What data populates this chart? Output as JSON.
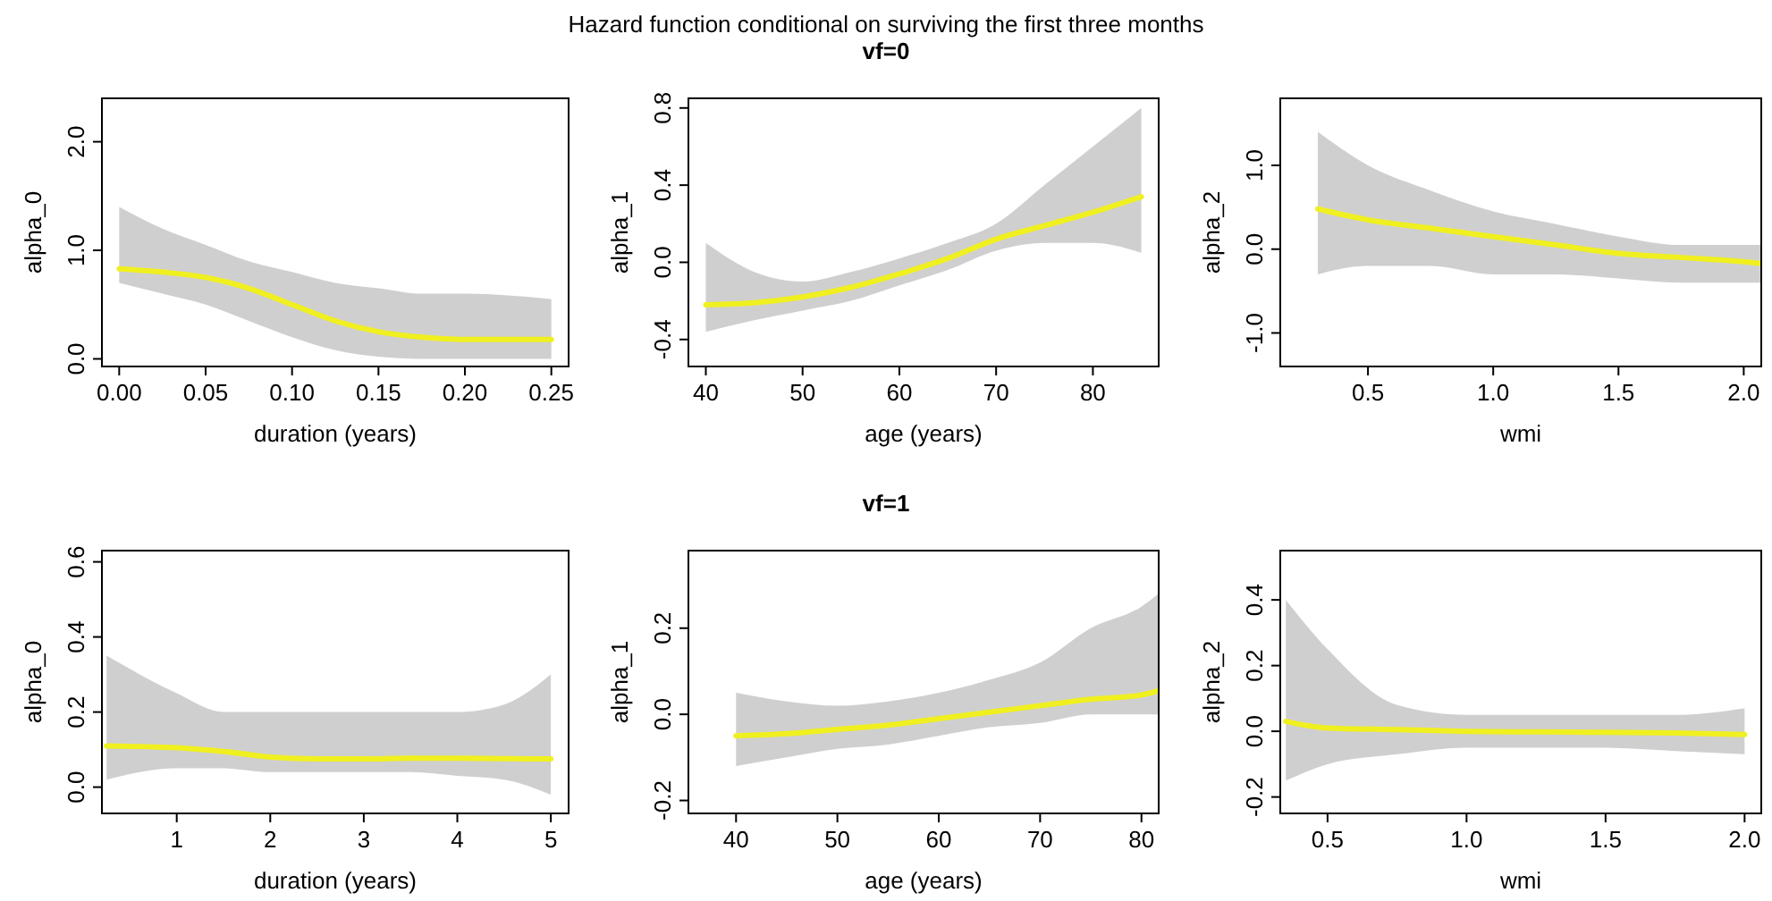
{
  "chart_data": [
    {
      "type": "line",
      "xlabel": "duration (years)",
      "ylabel": "alpha_0",
      "xlim": [
        -0.01,
        0.26
      ],
      "ylim": [
        -0.07,
        2.4
      ],
      "xticks": [
        {
          "value": 0,
          "label": "0.00"
        },
        {
          "value": 0.05,
          "label": "0.05"
        },
        {
          "value": 0.1,
          "label": "0.10"
        },
        {
          "value": 0.15,
          "label": "0.15"
        },
        {
          "value": 0.2,
          "label": "0.20"
        },
        {
          "value": 0.25,
          "label": "0.25"
        }
      ],
      "yticks": [
        {
          "value": 0,
          "label": "0.0"
        },
        {
          "value": 1,
          "label": "1.0"
        },
        {
          "value": 2,
          "label": "2.0"
        }
      ],
      "series": [
        {
          "color": "#f0f020",
          "x": [
            0,
            0.025,
            0.05,
            0.075,
            0.1,
            0.125,
            0.15,
            0.175,
            0.2,
            0.25
          ],
          "values": [
            0.83,
            0.8,
            0.75,
            0.65,
            0.5,
            0.35,
            0.25,
            0.2,
            0.18,
            0.18
          ],
          "lower": [
            0.7,
            0.6,
            0.5,
            0.35,
            0.2,
            0.08,
            0.02,
            0,
            0,
            0
          ],
          "upper": [
            1.4,
            1.2,
            1.05,
            0.9,
            0.8,
            0.7,
            0.65,
            0.6,
            0.6,
            0.55
          ]
        }
      ]
    },
    {
      "type": "line",
      "title": "Hazard function conditional on surviving the first three months",
      "subtitle": "vf=0",
      "xlabel": "age (years)",
      "ylabel": "alpha_1",
      "xlim": [
        38.2,
        86.8
      ],
      "ylim": [
        -0.54,
        0.85
      ],
      "xticks": [
        40,
        50,
        60,
        70,
        80
      ],
      "yticks": [
        -0.4,
        {
          "value": 0,
          "label": "0.0"
        },
        0.4,
        0.8
      ],
      "series": [
        {
          "color": "#f0f020",
          "x": [
            40,
            45,
            50,
            55,
            60,
            65,
            70,
            75,
            80,
            85
          ],
          "values": [
            -0.22,
            -0.21,
            -0.18,
            -0.13,
            -0.06,
            0.02,
            0.12,
            0.19,
            0.26,
            0.34
          ],
          "lower": [
            -0.36,
            -0.3,
            -0.25,
            -0.2,
            -0.12,
            -0.04,
            0.06,
            0.1,
            0.1,
            0.05
          ],
          "upper": [
            0.1,
            -0.05,
            -0.1,
            -0.05,
            0.02,
            0.1,
            0.2,
            0.4,
            0.6,
            0.8
          ]
        }
      ]
    },
    {
      "type": "line",
      "xlabel": "wmi",
      "ylabel": "alpha_2",
      "xlim": [
        0.15,
        2.07
      ],
      "ylim": [
        -1.4,
        1.8
      ],
      "xticks": [
        0.5,
        {
          "value": 1,
          "label": "1.0"
        },
        1.5,
        {
          "value": 2,
          "label": "2.0"
        }
      ],
      "yticks": [
        {
          "value": -1,
          "label": "-1.0"
        },
        {
          "value": 0,
          "label": "0.0"
        },
        {
          "value": 1,
          "label": "1.0"
        }
      ],
      "series": [
        {
          "color": "#f0f020",
          "x": [
            0.3,
            0.5,
            0.75,
            1.0,
            1.25,
            1.5,
            1.75,
            2.0,
            2.07
          ],
          "values": [
            0.48,
            0.35,
            0.25,
            0.15,
            0.05,
            -0.05,
            -0.1,
            -0.15,
            -0.17
          ],
          "lower": [
            -0.3,
            -0.2,
            -0.2,
            -0.3,
            -0.3,
            -0.35,
            -0.4,
            -0.4,
            -0.4
          ],
          "upper": [
            1.4,
            1.0,
            0.7,
            0.45,
            0.3,
            0.15,
            0.05,
            0.05,
            0.05
          ]
        }
      ]
    },
    {
      "type": "line",
      "xlabel": "duration (years)",
      "ylabel": "alpha_0",
      "xlim": [
        0.2,
        5.19
      ],
      "ylim": [
        -0.07,
        0.63
      ],
      "xticks": [
        1,
        2,
        3,
        4,
        5
      ],
      "yticks": [
        {
          "value": 0,
          "label": "0.0"
        },
        0.2,
        0.4,
        0.6
      ],
      "series": [
        {
          "color": "#f0f020",
          "x": [
            0.25,
            1,
            1.5,
            2,
            2.5,
            3,
            3.5,
            4,
            4.5,
            5
          ],
          "values": [
            0.11,
            0.105,
            0.095,
            0.08,
            0.075,
            0.075,
            0.077,
            0.077,
            0.076,
            0.075
          ],
          "lower": [
            0.02,
            0.05,
            0.05,
            0.04,
            0.04,
            0.04,
            0.04,
            0.03,
            0.02,
            -0.02
          ],
          "upper": [
            0.35,
            0.25,
            0.2,
            0.2,
            0.2,
            0.2,
            0.2,
            0.2,
            0.22,
            0.3
          ]
        }
      ]
    },
    {
      "type": "line",
      "subtitle": "vf=1",
      "xlabel": "age (years)",
      "ylabel": "alpha_1",
      "xlim": [
        35.3,
        81.7
      ],
      "ylim": [
        -0.23,
        0.38
      ],
      "xticks": [
        40,
        50,
        60,
        70,
        80
      ],
      "yticks": [
        -0.2,
        {
          "value": 0,
          "label": "0.0"
        },
        0.2
      ],
      "series": [
        {
          "color": "#f0f020",
          "x": [
            40,
            45,
            50,
            55,
            60,
            65,
            70,
            75,
            80,
            81.7
          ],
          "values": [
            -0.05,
            -0.045,
            -0.035,
            -0.025,
            -0.01,
            0.005,
            0.02,
            0.035,
            0.045,
            0.055
          ],
          "lower": [
            -0.12,
            -0.1,
            -0.08,
            -0.07,
            -0.05,
            -0.03,
            -0.02,
            0,
            0,
            0
          ],
          "upper": [
            0.05,
            0.03,
            0.02,
            0.03,
            0.05,
            0.08,
            0.12,
            0.2,
            0.25,
            0.28
          ]
        }
      ]
    },
    {
      "type": "line",
      "xlabel": "wmi",
      "ylabel": "alpha_2",
      "xlim": [
        0.33,
        2.06
      ],
      "ylim": [
        -0.25,
        0.55
      ],
      "xticks": [
        0.5,
        {
          "value": 1,
          "label": "1.0"
        },
        1.5,
        {
          "value": 2,
          "label": "2.0"
        }
      ],
      "yticks": [
        -0.2,
        {
          "value": 0,
          "label": "0.0"
        },
        0.2,
        0.4
      ],
      "series": [
        {
          "color": "#f0f020",
          "x": [
            0.35,
            0.5,
            0.75,
            1.0,
            1.25,
            1.5,
            1.75,
            2.0
          ],
          "values": [
            0.03,
            0.01,
            0.005,
            0,
            -0.002,
            -0.003,
            -0.005,
            -0.01
          ],
          "lower": [
            -0.15,
            -0.1,
            -0.07,
            -0.05,
            -0.05,
            -0.05,
            -0.06,
            -0.07
          ],
          "upper": [
            0.4,
            0.25,
            0.08,
            0.05,
            0.05,
            0.05,
            0.05,
            0.07
          ]
        }
      ]
    }
  ]
}
